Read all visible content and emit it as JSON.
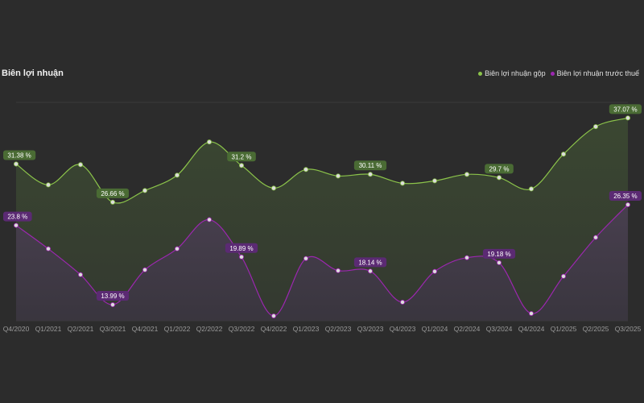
{
  "chart_data": {
    "type": "area",
    "title": "Biên lợi nhuận",
    "categories": [
      "Q4/2020",
      "Q1/2021",
      "Q2/2021",
      "Q3/2021",
      "Q4/2021",
      "Q1/2022",
      "Q2/2022",
      "Q3/2022",
      "Q4/2022",
      "Q1/2023",
      "Q2/2023",
      "Q3/2023",
      "Q4/2023",
      "Q1/2024",
      "Q2/2024",
      "Q3/2024",
      "Q4/2024",
      "Q1/2025",
      "Q2/2025",
      "Q3/2025"
    ],
    "ylim": [
      12,
      39
    ],
    "unit": "%",
    "series": [
      {
        "name": "Biên lợi nhuận gộp",
        "color": "#8bc34a",
        "label_color": "#4a6b34",
        "values": [
          31.38,
          28.8,
          31.3,
          26.66,
          28.1,
          30.0,
          34.1,
          31.2,
          28.4,
          30.7,
          29.9,
          30.11,
          29.0,
          29.3,
          30.1,
          29.7,
          28.3,
          32.6,
          36.0,
          37.07
        ],
        "labeled": [
          0,
          3,
          7,
          11,
          15,
          19
        ],
        "labels": [
          "31.38 %",
          "26.66 %",
          "31.2 %",
          "30.11 %",
          "29.7 %",
          "37.07 %"
        ]
      },
      {
        "name": "Biên lợi nhuận trước thuế",
        "color": "#9c27b0",
        "label_color": "#5b2a73",
        "values": [
          23.8,
          20.9,
          17.7,
          13.99,
          18.3,
          20.9,
          24.5,
          19.89,
          12.6,
          19.7,
          18.2,
          18.14,
          14.3,
          18.1,
          19.8,
          19.18,
          12.9,
          17.5,
          22.3,
          26.35
        ],
        "labeled": [
          0,
          3,
          7,
          11,
          15,
          19
        ],
        "labels": [
          "23.8 %",
          "13.99 %",
          "19.89 %",
          "18.14 %",
          "19.18 %",
          "26.35 %"
        ]
      }
    ]
  }
}
